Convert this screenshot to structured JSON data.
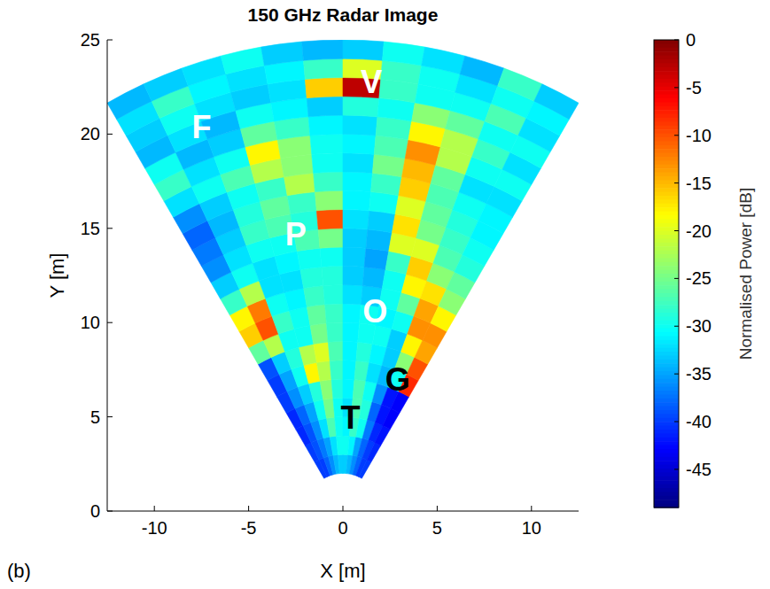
{
  "chart_data": {
    "type": "heatmap",
    "title": "150 GHz Radar Image",
    "x_label": "X [m]",
    "y_label": "Y [m]",
    "panel": "(b)",
    "xlim": [
      -12.5,
      12.5
    ],
    "ylim": [
      0,
      25
    ],
    "xticks": [
      -10,
      -5,
      0,
      5,
      10
    ],
    "yticks": [
      0,
      5,
      10,
      15,
      20,
      25
    ],
    "range_bins": [
      2,
      3,
      4,
      5,
      6,
      7,
      8,
      9,
      10,
      11,
      12,
      13,
      14,
      15,
      16,
      17,
      18,
      19,
      20,
      21,
      22,
      23,
      24,
      25
    ],
    "angle_bins": [
      -30,
      -25,
      -20,
      -15,
      -10,
      -5,
      0,
      5,
      10,
      15,
      20,
      25,
      30
    ],
    "values": [
      [
        -40,
        -40,
        -38,
        -36,
        -34,
        -33,
        -33,
        -34,
        -36,
        -38,
        -40,
        -40
      ],
      [
        -40,
        -39,
        -37,
        -35,
        -32,
        -30,
        -30,
        -31,
        -35,
        -38,
        -40,
        -41
      ],
      [
        -41,
        -39,
        -36,
        -32,
        -27,
        -30,
        -31,
        -28,
        -30,
        -37,
        -41,
        -42
      ],
      [
        -41,
        -38,
        -35,
        -30,
        -25,
        -30,
        -32,
        -27,
        -29,
        -38,
        -42,
        -43
      ],
      [
        -40,
        -36,
        -33,
        -29,
        -24,
        -29,
        -31,
        -27,
        -30,
        -36,
        -42,
        -43
      ],
      [
        -40,
        -35,
        -30,
        -18,
        -22,
        -28,
        -31,
        -28,
        -32,
        -34,
        -30,
        -8
      ],
      [
        -39,
        -33,
        -29,
        -22,
        -20,
        -27,
        -31,
        -29,
        -31,
        -33,
        -24,
        -10
      ],
      [
        -26,
        -22,
        -30,
        -30,
        -25,
        -28,
        -31,
        -30,
        -30,
        -33,
        -18,
        -14
      ],
      [
        -16,
        -10,
        -28,
        -30,
        -26,
        -28,
        -31,
        -30,
        -31,
        -30,
        -13,
        -13
      ],
      [
        -18,
        -12,
        -30,
        -31,
        -28,
        -29,
        -32,
        -33,
        -30,
        -26,
        -14,
        -18
      ],
      [
        -28,
        -22,
        -32,
        -32,
        -29,
        -29,
        -33,
        -34,
        -30,
        -18,
        -17,
        -24
      ],
      [
        -33,
        -30,
        -32,
        -31,
        -30,
        -30,
        -33,
        -35,
        -28,
        -16,
        -24,
        -26
      ],
      [
        -36,
        -32,
        -30,
        -30,
        -27,
        -25,
        -33,
        -34,
        -20,
        -20,
        -27,
        -29
      ],
      [
        -37,
        -33,
        -28,
        -27,
        -29,
        -10,
        -32,
        -33,
        -17,
        -25,
        -28,
        -30
      ],
      [
        -38,
        -34,
        -29,
        -26,
        -28,
        -24,
        -31,
        -30,
        -20,
        -26,
        -29,
        -31
      ],
      [
        -36,
        -33,
        -30,
        -28,
        -22,
        -28,
        -31,
        -28,
        -16,
        -27,
        -30,
        -31
      ],
      [
        -32,
        -30,
        -27,
        -22,
        -24,
        -30,
        -32,
        -25,
        -15,
        -26,
        -32,
        -32
      ],
      [
        -28,
        -32,
        -30,
        -18,
        -24,
        -30,
        -31,
        -27,
        -13,
        -22,
        -30,
        -30
      ],
      [
        -30,
        -34,
        -33,
        -26,
        -28,
        -31,
        -32,
        -28,
        -18,
        -22,
        -28,
        -32
      ],
      [
        -34,
        -32,
        -34,
        -30,
        -31,
        -33,
        -29,
        -30,
        -24,
        -26,
        -30,
        -30
      ],
      [
        -33,
        -30,
        -32,
        -33,
        -32,
        -16,
        -3,
        -28,
        -30,
        -30,
        -27,
        -32
      ],
      [
        -32,
        -28,
        -31,
        -32,
        -31,
        -28,
        -20,
        -28,
        -30,
        -32,
        -30,
        -31
      ],
      [
        -34,
        -33,
        -32,
        -30,
        -33,
        -34,
        -33,
        -30,
        -32,
        -34,
        -28,
        -33
      ]
    ],
    "colorbar": {
      "label": "Normalised Power [dB]",
      "range": [
        -49,
        0
      ],
      "ticks": [
        0,
        -5,
        -10,
        -15,
        -20,
        -25,
        -30,
        -35,
        -40,
        -45
      ]
    },
    "annotations": [
      {
        "text": "V",
        "x": 1.5,
        "y": 22.8,
        "color": "#ffffff"
      },
      {
        "text": "F",
        "x": -7.5,
        "y": 20.4,
        "color": "#ffffff"
      },
      {
        "text": "P",
        "x": -2.5,
        "y": 14.7,
        "color": "#ffffff"
      },
      {
        "text": "O",
        "x": 1.7,
        "y": 10.6,
        "color": "#ffffff"
      },
      {
        "text": "G",
        "x": 2.9,
        "y": 7.0,
        "color": "#000000"
      },
      {
        "text": "T",
        "x": 0.4,
        "y": 5.0,
        "color": "#000000"
      }
    ]
  }
}
